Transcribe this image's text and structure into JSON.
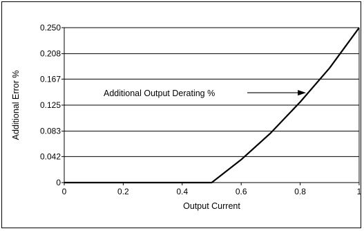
{
  "chart_data": {
    "type": "line",
    "title": "",
    "xlabel": "Output Current",
    "ylabel": "Additional Error %",
    "xlim": [
      0,
      1
    ],
    "ylim": [
      0,
      0.25
    ],
    "x_ticks": [
      0,
      0.2,
      0.4,
      0.6,
      0.8,
      1
    ],
    "x_tick_labels": [
      "0",
      "0.2",
      "0.4",
      "0.6",
      "0.8",
      "1"
    ],
    "y_ticks": [
      0,
      0.042,
      0.083,
      0.125,
      0.167,
      0.208,
      0.25
    ],
    "y_tick_labels": [
      "0",
      "0.042",
      "0.083",
      "0.125",
      "0.167",
      "0.208",
      "0.250"
    ],
    "grid": "horizontal",
    "series": [
      {
        "name": "Additional Output Derating %",
        "x": [
          0,
          0.5,
          0.6,
          0.7,
          0.8,
          0.9,
          1.0
        ],
        "y": [
          0,
          0,
          0.037,
          0.08,
          0.13,
          0.185,
          0.25
        ]
      }
    ],
    "annotations": [
      {
        "text": "Additional Output Derating %",
        "points_to": {
          "x": 0.82,
          "y": 0.145
        }
      }
    ]
  }
}
